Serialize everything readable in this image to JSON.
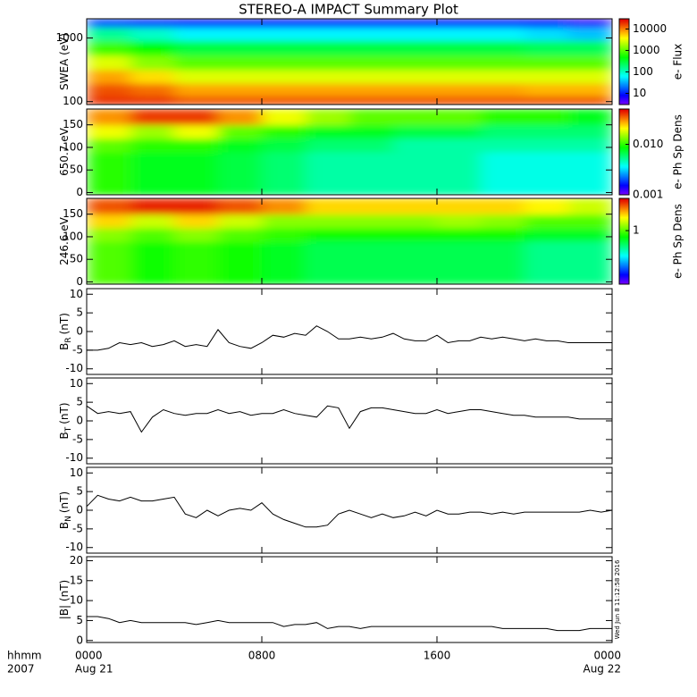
{
  "title": "STEREO-A IMPACT Summary Plot",
  "x_axis": {
    "label": "hhmm",
    "year": "2007",
    "xlim": [
      0,
      24
    ],
    "xticks": [
      {
        "value": 0,
        "label": "0000"
      },
      {
        "value": 8,
        "label": "0800"
      },
      {
        "value": 16,
        "label": "1600"
      },
      {
        "value": 24,
        "label": "0000"
      }
    ],
    "date_labels": [
      {
        "value": 0,
        "label": "Aug 21"
      },
      {
        "value": 24,
        "label": "Aug 22"
      }
    ],
    "x": [
      0,
      0.5,
      1,
      1.5,
      2,
      2.5,
      3,
      3.5,
      4,
      4.5,
      5,
      5.5,
      6,
      6.5,
      7,
      7.5,
      8,
      8.5,
      9,
      9.5,
      10,
      10.5,
      11,
      11.5,
      12,
      12.5,
      13,
      13.5,
      14,
      14.5,
      15,
      15.5,
      16,
      16.5,
      17,
      17.5,
      18,
      18.5,
      19,
      19.5,
      20,
      20.5,
      21,
      21.5,
      22,
      22.5,
      23,
      23.5,
      24
    ]
  },
  "timestamp": "Wed Jun  8 11:12:58 2016",
  "chart_data": [
    {
      "type": "heatmap",
      "ylabel": "SWEA (eV)",
      "ylog": true,
      "ylim": [
        90,
        2000
      ],
      "yticks": [
        100,
        1000
      ],
      "zlabel": "e- Flux",
      "zlog": true,
      "zlim": [
        3,
        30000
      ],
      "zticks": [
        10,
        100,
        1000,
        10000
      ],
      "x": [
        1,
        3,
        5,
        7,
        9,
        11,
        13,
        15,
        17,
        19,
        21,
        23
      ],
      "y": [
        100,
        150,
        250,
        400,
        700,
        1200,
        1800
      ],
      "z": [
        [
          20000,
          20000,
          15000,
          15000,
          15000,
          15000,
          15000,
          15000,
          15000,
          15000,
          15000,
          15000
        ],
        [
          15000,
          12000,
          8000,
          8000,
          8000,
          8000,
          8000,
          8000,
          8000,
          8000,
          7000,
          7000
        ],
        [
          8000,
          5000,
          3000,
          3000,
          3000,
          3000,
          3000,
          3000,
          3000,
          3000,
          3000,
          3000
        ],
        [
          3000,
          1500,
          1000,
          1000,
          1000,
          1000,
          1000,
          1000,
          1000,
          1000,
          1000,
          1000
        ],
        [
          800,
          500,
          300,
          300,
          300,
          300,
          300,
          300,
          300,
          300,
          250,
          250
        ],
        [
          150,
          100,
          60,
          60,
          60,
          60,
          60,
          60,
          60,
          60,
          50,
          40
        ],
        [
          15,
          12,
          10,
          10,
          10,
          10,
          10,
          10,
          10,
          10,
          8,
          6
        ]
      ]
    },
    {
      "type": "heatmap",
      "ylabel": "650.7 eV",
      "ylim": [
        -5,
        185
      ],
      "yticks": [
        0,
        50,
        100,
        150
      ],
      "zlabel": "e- Ph Sp Dens",
      "zlog": true,
      "zlim": [
        0.001,
        0.05
      ],
      "zticks": [
        0.001,
        {
          "value": 0.01,
          "label": "0.010"
        }
      ],
      "x": [
        1,
        3,
        5,
        7,
        9,
        11,
        13,
        15,
        17,
        19,
        21,
        23
      ],
      "y": [
        15,
        45,
        75,
        105,
        135,
        165
      ],
      "z": [
        [
          0.01,
          0.008,
          0.008,
          0.007,
          0.006,
          0.005,
          0.005,
          0.005,
          0.005,
          0.004,
          0.004,
          0.004
        ],
        [
          0.01,
          0.008,
          0.008,
          0.007,
          0.006,
          0.005,
          0.005,
          0.005,
          0.005,
          0.004,
          0.004,
          0.004
        ],
        [
          0.01,
          0.008,
          0.008,
          0.007,
          0.006,
          0.005,
          0.005,
          0.005,
          0.005,
          0.004,
          0.004,
          0.004
        ],
        [
          0.012,
          0.01,
          0.01,
          0.008,
          0.007,
          0.006,
          0.006,
          0.005,
          0.005,
          0.005,
          0.005,
          0.005
        ],
        [
          0.02,
          0.015,
          0.02,
          0.012,
          0.01,
          0.008,
          0.008,
          0.007,
          0.007,
          0.006,
          0.006,
          0.006
        ],
        [
          0.03,
          0.04,
          0.04,
          0.03,
          0.02,
          0.015,
          0.012,
          0.012,
          0.012,
          0.01,
          0.01,
          0.008
        ]
      ]
    },
    {
      "type": "heatmap",
      "ylabel": "246.6 eV",
      "ylim": [
        -5,
        185
      ],
      "yticks": [
        0,
        50,
        100,
        150
      ],
      "zlabel": "e- Ph Sp Dens",
      "zlog": true,
      "zlim": [
        0.1,
        4
      ],
      "zticks": [
        1
      ],
      "x": [
        1,
        3,
        5,
        7,
        9,
        11,
        13,
        15,
        17,
        19,
        21,
        23
      ],
      "y": [
        15,
        45,
        75,
        105,
        135,
        165
      ],
      "z": [
        [
          1,
          0.8,
          0.9,
          0.8,
          0.7,
          0.6,
          0.6,
          0.6,
          0.6,
          0.6,
          0.5,
          0.5
        ],
        [
          1,
          0.8,
          0.9,
          0.8,
          0.7,
          0.6,
          0.6,
          0.6,
          0.6,
          0.6,
          0.5,
          0.5
        ],
        [
          1,
          0.8,
          0.9,
          0.8,
          0.7,
          0.6,
          0.6,
          0.6,
          0.6,
          0.6,
          0.5,
          0.5
        ],
        [
          1.2,
          1,
          1.2,
          1,
          0.9,
          0.8,
          0.8,
          0.8,
          0.8,
          0.8,
          0.7,
          0.7
        ],
        [
          2,
          1.5,
          2,
          1.5,
          1.2,
          1.2,
          1.2,
          1.2,
          1.3,
          1.2,
          1,
          1
        ],
        [
          3,
          3.5,
          3.5,
          3,
          2.5,
          2,
          2,
          2,
          2,
          2,
          1.8,
          1.5
        ]
      ]
    },
    {
      "type": "line",
      "ylabel": "B",
      "ylabel_sub": "R",
      "ylabel_unit": "(nT)",
      "ylim": [
        -11.5,
        11.5
      ],
      "yticks": [
        -10,
        -5,
        0,
        5,
        10
      ],
      "color": "#000000",
      "values": [
        -5,
        -5,
        -4.5,
        -3,
        -3.5,
        -3,
        -4,
        -3.5,
        -2.5,
        -4,
        -3.5,
        -4,
        0.5,
        -3,
        -4,
        -4.5,
        -3,
        -1,
        -1.5,
        -0.5,
        -1,
        1.5,
        0,
        -2,
        -2,
        -1.5,
        -2,
        -1.5,
        -0.5,
        -2,
        -2.5,
        -2.5,
        -1,
        -3,
        -2.5,
        -2.5,
        -1.5,
        -2,
        -1.5,
        -2,
        -2.5,
        -2,
        -2.5,
        -2.5,
        -3,
        -3,
        -3,
        -3,
        -3
      ]
    },
    {
      "type": "line",
      "ylabel": "B",
      "ylabel_sub": "T",
      "ylabel_unit": "(nT)",
      "ylim": [
        -11.5,
        11.5
      ],
      "yticks": [
        -10,
        -5,
        0,
        5,
        10
      ],
      "color": "#000000",
      "values": [
        4,
        2,
        2.5,
        2,
        2.5,
        -3,
        1,
        3,
        2,
        1.5,
        2,
        2,
        3,
        2,
        2.5,
        1.5,
        2,
        2,
        3,
        2,
        1.5,
        1,
        4,
        3.5,
        -2,
        2.5,
        3.5,
        3.5,
        3,
        2.5,
        2,
        2,
        3,
        2,
        2.5,
        3,
        3,
        2.5,
        2,
        1.5,
        1.5,
        1,
        1,
        1,
        1,
        0.5,
        0.5,
        0.5,
        0.5
      ]
    },
    {
      "type": "line",
      "ylabel": "B",
      "ylabel_sub": "N",
      "ylabel_unit": "(nT)",
      "ylim": [
        -11.5,
        11.5
      ],
      "yticks": [
        -10,
        -5,
        0,
        5,
        10
      ],
      "color": "#000000",
      "values": [
        1,
        4,
        3,
        2.5,
        3.5,
        2.5,
        2.5,
        3,
        3.5,
        -1,
        -2,
        0,
        -1.5,
        0,
        0.5,
        0,
        2,
        -1,
        -2.5,
        -3.5,
        -4.5,
        -4.5,
        -4,
        -1,
        0,
        -1,
        -2,
        -1,
        -2,
        -1.5,
        -0.5,
        -1.5,
        0,
        -1,
        -1,
        -0.5,
        -0.5,
        -1,
        -0.5,
        -1,
        -0.5,
        -0.5,
        -0.5,
        -0.5,
        -0.5,
        -0.5,
        0,
        -0.5,
        0
      ]
    },
    {
      "type": "line",
      "ylabel": "|B| (nT)",
      "ylim": [
        -0.5,
        21
      ],
      "yticks": [
        0,
        5,
        10,
        15,
        20
      ],
      "color": "#000000",
      "values": [
        6,
        6,
        5.5,
        4.5,
        5,
        4.5,
        4.5,
        4.5,
        4.5,
        4.5,
        4,
        4.5,
        5,
        4.5,
        4.5,
        4.5,
        4.5,
        4.5,
        3.5,
        4,
        4,
        4.5,
        3,
        3.5,
        3.5,
        3,
        3.5,
        3.5,
        3.5,
        3.5,
        3.5,
        3.5,
        3.5,
        3.5,
        3.5,
        3.5,
        3.5,
        3.5,
        3,
        3,
        3,
        3,
        3,
        2.5,
        2.5,
        2.5,
        3,
        3,
        3
      ]
    }
  ]
}
